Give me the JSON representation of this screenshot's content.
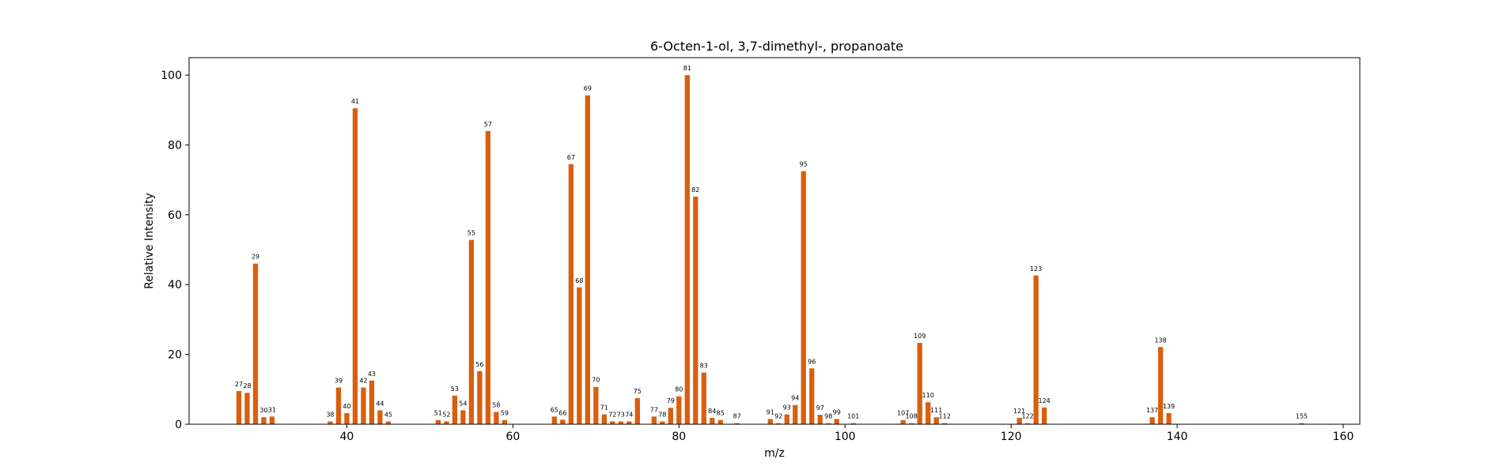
{
  "chart_data": {
    "type": "bar",
    "title": "6-Octen-1-ol, 3,7-dimethyl-, propanoate",
    "xlabel": "m/z",
    "ylabel": "Relative Intensity",
    "xlim": [
      21,
      162
    ],
    "ylim": [
      0,
      105
    ],
    "xticks": [
      40,
      60,
      80,
      100,
      120,
      140,
      160
    ],
    "yticks": [
      0,
      20,
      40,
      60,
      80,
      100
    ],
    "grid": false,
    "bar_color": "#d95f0e",
    "points": [
      {
        "x": 27,
        "y": 9.5
      },
      {
        "x": 28,
        "y": 9
      },
      {
        "x": 29,
        "y": 46
      },
      {
        "x": 30,
        "y": 2
      },
      {
        "x": 31,
        "y": 2.2
      },
      {
        "x": 38,
        "y": 0.8
      },
      {
        "x": 39,
        "y": 10.5
      },
      {
        "x": 40,
        "y": 3.2
      },
      {
        "x": 41,
        "y": 90.5
      },
      {
        "x": 42,
        "y": 10.5
      },
      {
        "x": 43,
        "y": 12.5
      },
      {
        "x": 44,
        "y": 4
      },
      {
        "x": 45,
        "y": 0.8
      },
      {
        "x": 51,
        "y": 1.2
      },
      {
        "x": 52,
        "y": 0.8
      },
      {
        "x": 53,
        "y": 8.2
      },
      {
        "x": 54,
        "y": 4
      },
      {
        "x": 55,
        "y": 52.8
      },
      {
        "x": 56,
        "y": 15.2
      },
      {
        "x": 57,
        "y": 84
      },
      {
        "x": 58,
        "y": 3.5
      },
      {
        "x": 59,
        "y": 1.2
      },
      {
        "x": 65,
        "y": 2.2
      },
      {
        "x": 66,
        "y": 1.3
      },
      {
        "x": 67,
        "y": 74.5
      },
      {
        "x": 68,
        "y": 39.2
      },
      {
        "x": 69,
        "y": 94.2
      },
      {
        "x": 70,
        "y": 10.7
      },
      {
        "x": 71,
        "y": 2.8
      },
      {
        "x": 72,
        "y": 0.8
      },
      {
        "x": 73,
        "y": 0.8
      },
      {
        "x": 74,
        "y": 0.8
      },
      {
        "x": 75,
        "y": 7.5
      },
      {
        "x": 77,
        "y": 2.2
      },
      {
        "x": 78,
        "y": 0.8
      },
      {
        "x": 79,
        "y": 4.7
      },
      {
        "x": 80,
        "y": 8
      },
      {
        "x": 81,
        "y": 100
      },
      {
        "x": 82,
        "y": 65.2
      },
      {
        "x": 83,
        "y": 14.8
      },
      {
        "x": 84,
        "y": 1.8
      },
      {
        "x": 85,
        "y": 1.2
      },
      {
        "x": 87,
        "y": 0.3
      },
      {
        "x": 91,
        "y": 1.5
      },
      {
        "x": 92,
        "y": 0.3
      },
      {
        "x": 93,
        "y": 2.8
      },
      {
        "x": 94,
        "y": 5.5
      },
      {
        "x": 95,
        "y": 72.5
      },
      {
        "x": 96,
        "y": 16
      },
      {
        "x": 97,
        "y": 2.7
      },
      {
        "x": 98,
        "y": 0.3
      },
      {
        "x": 99,
        "y": 1.5
      },
      {
        "x": 101,
        "y": 0.3
      },
      {
        "x": 107,
        "y": 1.2
      },
      {
        "x": 108,
        "y": 0.3
      },
      {
        "x": 109,
        "y": 23.3
      },
      {
        "x": 110,
        "y": 6.3
      },
      {
        "x": 111,
        "y": 2
      },
      {
        "x": 112,
        "y": 0.3
      },
      {
        "x": 121,
        "y": 1.8
      },
      {
        "x": 122,
        "y": 0.3
      },
      {
        "x": 123,
        "y": 42.6
      },
      {
        "x": 124,
        "y": 4.8
      },
      {
        "x": 137,
        "y": 2
      },
      {
        "x": 138,
        "y": 22.1
      },
      {
        "x": 139,
        "y": 3.2
      },
      {
        "x": 155,
        "y": 0.3
      }
    ]
  }
}
